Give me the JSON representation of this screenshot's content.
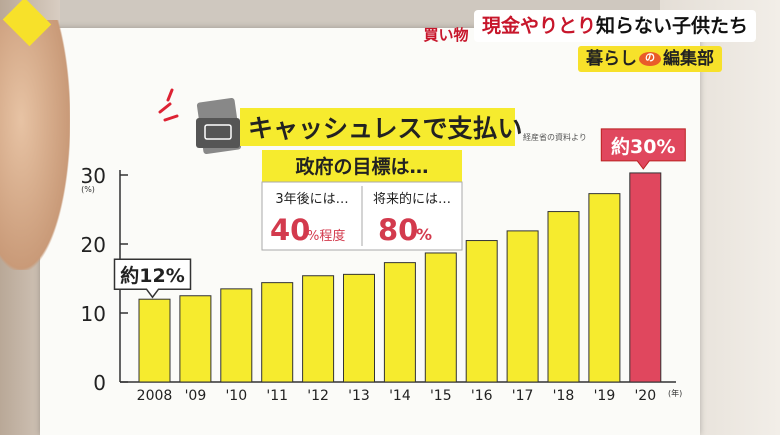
{
  "overlay": {
    "category_tag": "買い物",
    "headline_red": "現金やりとり",
    "headline_rest": "知らない子供たち",
    "show_left": "暮らし",
    "show_mark": "の",
    "show_right": "編集部"
  },
  "chart_data": {
    "type": "bar",
    "title": "キャッシュレスで支払い",
    "source": "経産省の資料より",
    "y_unit": "(%)",
    "x_unit": "(年)",
    "ylim": [
      0,
      30
    ],
    "yticks": [
      0,
      10,
      20,
      30
    ],
    "categories": [
      "2008",
      "'09",
      "'10",
      "'11",
      "'12",
      "'13",
      "'14",
      "'15",
      "'16",
      "'17",
      "'18",
      "'19",
      "'20"
    ],
    "values": [
      12,
      12.5,
      13.5,
      14.4,
      15.4,
      15.6,
      17.3,
      18.7,
      20.5,
      21.9,
      24.7,
      27.3,
      30.3
    ],
    "bar_color": "#f6eb2e",
    "highlight_color": "#e0475e",
    "annotations": {
      "first": "約12%",
      "last": "約30%"
    },
    "goal_box": {
      "title": "政府の目標は…",
      "left_label": "3年後には…",
      "left_value": "40",
      "left_suffix": "%程度",
      "right_label": "将来的には…",
      "right_value": "80",
      "right_suffix": "%"
    }
  }
}
